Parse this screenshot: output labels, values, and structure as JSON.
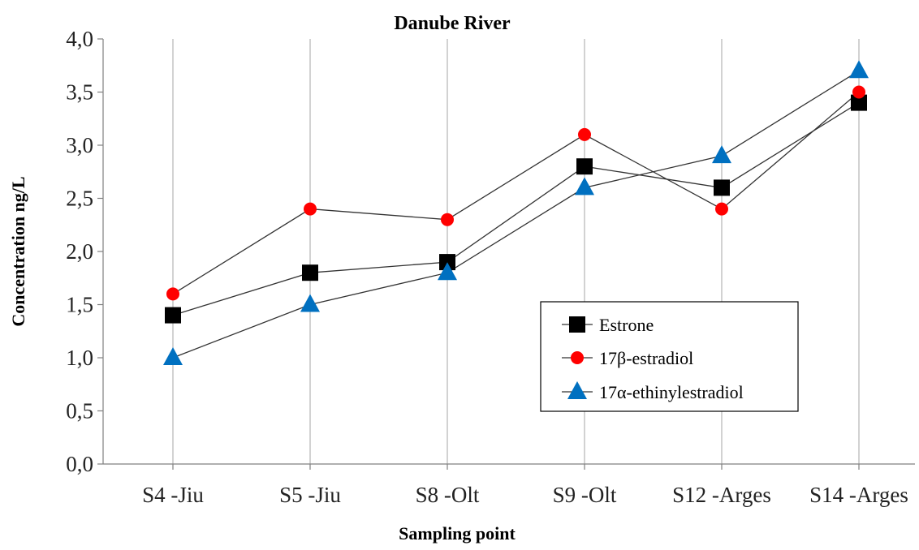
{
  "chart_data": {
    "type": "line",
    "title": "Danube River",
    "xlabel": "Sampling point",
    "ylabel": "Concentration ng/L",
    "categories": [
      "S4 -Jiu",
      "S5 -Jiu",
      "S8 -Olt",
      "S9 -Olt",
      "S12 -Arges",
      "S14 -Arges"
    ],
    "ylim": [
      0,
      4
    ],
    "yticks": [
      "0,0",
      "0,5",
      "1,0",
      "1,5",
      "2,0",
      "2,5",
      "3,0",
      "3,5",
      "4,0"
    ],
    "grid": "vertical",
    "legend_position": "lower-right",
    "series": [
      {
        "name": "Estrone",
        "values": [
          1.4,
          1.8,
          1.9,
          2.8,
          2.6,
          3.4
        ],
        "color": "#000000",
        "marker": "square"
      },
      {
        "name": "17β-estradiol",
        "values": [
          1.6,
          2.4,
          2.3,
          3.1,
          2.4,
          3.5
        ],
        "color": "#ff0000",
        "marker": "circle"
      },
      {
        "name": "17α-ethinylestradiol",
        "values": [
          1.0,
          1.5,
          1.8,
          2.6,
          2.9,
          3.7
        ],
        "color": "#0070c0",
        "marker": "triangle"
      }
    ]
  }
}
